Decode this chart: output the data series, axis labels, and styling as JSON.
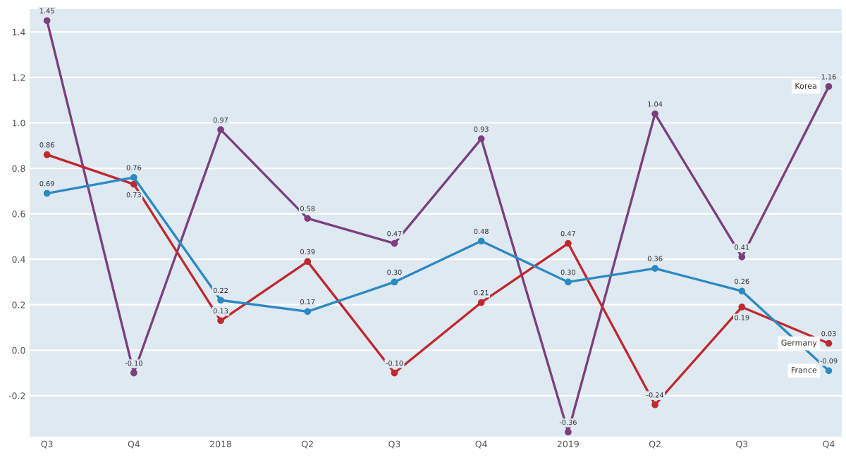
{
  "chart_data": {
    "type": "line",
    "categories": [
      "Q3",
      "Q4",
      "2018",
      "Q2",
      "Q3",
      "Q4",
      "2019",
      "Q2",
      "Q3",
      "Q4"
    ],
    "series": [
      {
        "name": "Korea",
        "color": "#7b3f7f",
        "values": [
          1.45,
          -0.1,
          0.97,
          0.58,
          0.47,
          0.93,
          -0.36,
          1.04,
          0.41,
          1.16
        ],
        "value_labels": [
          "1.45",
          "-0.10",
          "0.97",
          "0.58",
          "0.47",
          "0.93",
          "-0.36",
          "1.04",
          "0.41",
          "1.16"
        ]
      },
      {
        "name": "Germany",
        "color": "#c0282f",
        "values": [
          0.86,
          0.73,
          0.13,
          0.39,
          -0.1,
          0.21,
          0.47,
          -0.24,
          0.19,
          0.03
        ],
        "value_labels": [
          "0.86",
          "0.73",
          "0.13",
          "0.39",
          "-0.10",
          "0.21",
          "0.47",
          "-0.24",
          "0.19",
          "0.03"
        ]
      },
      {
        "name": "France",
        "color": "#2a8ac2",
        "values": [
          0.69,
          0.76,
          0.22,
          0.17,
          0.3,
          0.48,
          0.3,
          0.36,
          0.26,
          -0.09
        ],
        "value_labels": [
          "0.69",
          "0.76",
          "0.22",
          "0.17",
          "0.30",
          "0.48",
          "0.30",
          "0.36",
          "0.26",
          "-0.09"
        ]
      }
    ],
    "ylim": [
      -0.38,
      1.5
    ],
    "yticks": [
      -0.2,
      {
        "value": 0,
        "label": "0.0"
      },
      0.2,
      0.4,
      0.6,
      0.8,
      {
        "value": 1,
        "label": "1.0"
      },
      1.2,
      1.4
    ],
    "grid": "y",
    "marker": "circle",
    "line_style": "solid"
  }
}
